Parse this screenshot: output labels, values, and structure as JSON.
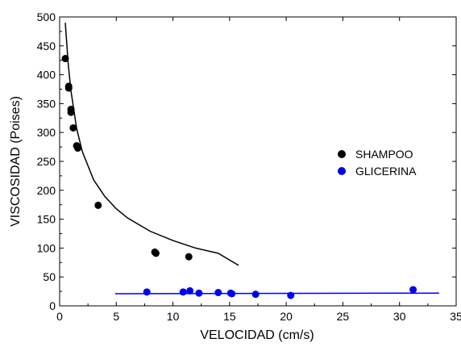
{
  "chart_data": {
    "type": "scatter",
    "title": "",
    "xlabel": "VELOCIDAD (cm/s)",
    "ylabel": "VISCOSIDAD (Poises)",
    "xlim": [
      0,
      35
    ],
    "ylim": [
      0,
      500
    ],
    "xticks": [
      0,
      5,
      10,
      15,
      20,
      25,
      30,
      35
    ],
    "yticks": [
      0,
      50,
      100,
      150,
      200,
      250,
      300,
      350,
      400,
      450,
      500
    ],
    "grid": false,
    "legend_position": "right",
    "series": [
      {
        "name": "SHAMPOO",
        "color": "#000000",
        "points": [
          [
            0.5,
            428
          ],
          [
            0.8,
            380
          ],
          [
            0.8,
            377
          ],
          [
            1.0,
            340
          ],
          [
            1.0,
            335
          ],
          [
            1.2,
            308
          ],
          [
            1.5,
            277
          ],
          [
            1.6,
            273
          ],
          [
            3.4,
            174
          ],
          [
            8.4,
            93
          ],
          [
            8.5,
            91
          ],
          [
            11.4,
            85
          ]
        ],
        "fit": {
          "color": "#000000",
          "x": [
            0.5,
            0.75,
            1.0,
            1.5,
            2.0,
            3.0,
            4.0,
            5.0,
            6.0,
            8.0,
            10.0,
            12.0,
            14.0,
            15.8
          ],
          "y": [
            490,
            420,
            372,
            307,
            267,
            218,
            189,
            168,
            152,
            129,
            113,
            100,
            91,
            70
          ]
        }
      },
      {
        "name": "GLICERINA",
        "color": "#0000ee",
        "points": [
          [
            7.7,
            24
          ],
          [
            10.9,
            24
          ],
          [
            11.5,
            26
          ],
          [
            12.3,
            22
          ],
          [
            14.0,
            23
          ],
          [
            15.1,
            22
          ],
          [
            15.2,
            21
          ],
          [
            17.3,
            20
          ],
          [
            20.4,
            18
          ],
          [
            31.2,
            28
          ]
        ],
        "fit": {
          "color": "#0000ee",
          "x": [
            4.9,
            33.5
          ],
          "y": [
            21,
            22
          ]
        }
      }
    ]
  }
}
